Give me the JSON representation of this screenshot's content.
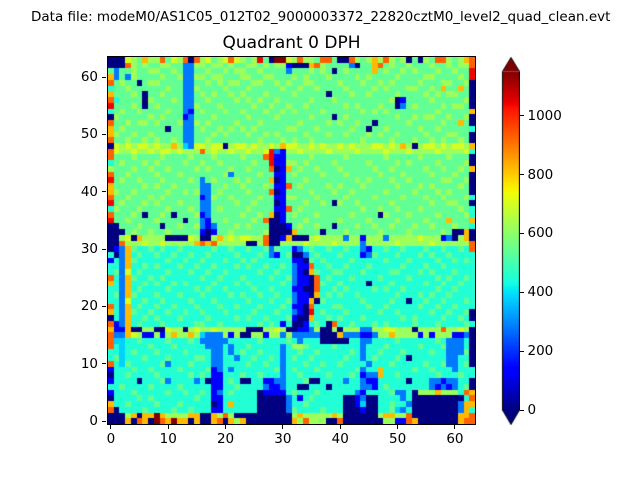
{
  "header": {
    "data_file_label": "Data file: modeM0/AS1C05_012T02_9000003372_22820cztM0_level2_quad_clean.evt"
  },
  "chart_data": {
    "type": "heatmap",
    "title": "Quadrant 0 DPH",
    "xlabel": "",
    "ylabel": "",
    "x_ticks": [
      0,
      10,
      20,
      30,
      40,
      50,
      60
    ],
    "y_ticks": [
      0,
      10,
      20,
      30,
      40,
      50,
      60
    ],
    "x_range": [
      -0.5,
      63.5
    ],
    "y_range": [
      -0.5,
      63.5
    ],
    "grid_size": [
      64,
      64
    ],
    "colormap": "jet",
    "vmin": 0,
    "vmax": 1150,
    "origin": "lower",
    "colorbar": {
      "ticks": [
        0,
        200,
        400,
        600,
        800,
        1000
      ],
      "extend": "both",
      "under_color": "#000080",
      "over_color": "#800000"
    },
    "value_key": {
      "0": -20,
      "1": 140,
      "2": 280,
      "3": 380,
      "4": 450,
      "5": 540,
      "6": 620,
      "7": 700,
      "8": 820,
      "9": 930,
      "A": 1040,
      "B": 1200
    },
    "row_order": "top_to_bottom_y63_to_y0",
    "rows": [
      "0007658669576909675679765 6A50BB769665995009656869656050659965689",
      "0009656556655226656656556656566100089655552055895655655565565669",
      "5255655665565225565565665565555255565650565555856556565556556 55A",
      "825265555655622665665556655665556565556555565655556555566555565A",
      "9565505665555225565656655665565655665555655565565655556555665560",
      "4556555555655226555565556555556556556555565555656555665565855850",
      "8555650556555225656556565556555565555505556556555565555656566550",
      "9455550655565225565555656565565555565556555555555601555565555560",
      "A555650565555226555655555655655655655555565655565502565555656650",
      "4565565555655215655565565556556565555655555565656555555556555558",
      "0655555656555125556555556555565555565550565555555565565665565560",
      "9556566565556226565555655565555556555565655655055555655555655850",
      "8565555555055225655656565655555665556555556550556555556556555554",
      "8655655655555225556565556556565555655565565556565565555655566550",
      "9556556565565225565555555565556565565555555565555655565565655650",
      "0767677676686327767706776766768776676766767666776768606776767768",
      "97667667677676669676676676 67A21667666676666766667666766667666674",
      "95556555565555655565555655 59A1155556555556555555655555655556 5550",
      "456555656555565565565555565 5A11665655556555556555565655556555560",
      "6555655655655556565556556555901856556555655555655655555655655658",
      "9556555565556555555562555565511565555655565555565556555565556550",
      "A565565556555565256555656555801555655555555656555655655555665560",
      "8555556565565555225565565556511956555565655565555565556565555650",
      "8655655555655656225655556555901555565556556555556555565556565550",
      "9556555656555555126556555565511665556555565555655556555655655564",
      "A565556565556555225555655655501555655650655655555655555565566550",
      "4655565555655565225655556555511956555555555565565565556555555654",
      "9555650556505556125555565565801565556555556555506555655556555564",
      "A556555565555055215565555659001555655555655556555565555655585558",
      "0055565550556556212555656555000156556550555655655655565565556554",
      "0005655655655555101556555556000085555055565555565555655555650080",
      "0067086666000076006867677669001800067666626616662666667666120680",
      "0096667667666668989666660069006666766667666626666676666676666669",
      "0128544545445444445445445445254412454454454421445445444544544549",
      "4028454454454454454444544454214500245444544412544454445454454444",
      "1428544444544544544454454544444411054544445444445444544445445454",
      "4428445454445445445444545445445421194454454445444445444544544444",
      "4527454444544454454454444454454421085445544454444554445454445444",
      "9428544545444444544544454444544521109454445444454444544445454454",
      "8428445454454544445444545444445421109544544440444544444544544544",
      "4428454444544445454454444544544411009445454444545445444445445444",
      "4528544454445444544445454454454421108454544544444454445454454444",
      "4427445445444454445444445444544521180544444454444544044544544454",
      "9428454454454445444544544454445411094445544445445444445445445444",
      "84285445445445445444544445444544210A4544454444454454444454454450",
      "0428445454445444454444545445444510084454544454444445454444544540",
      "9128454445444445544544444454541400145409445444545444454445444454",
      "8118006600766067667666660006676001126006066622667766606666966760",
      "9228761161686686322261600661662622222000822211266866661616661120",
      "9334454444544454222224444454444542444000004422444454444445422240",
      "9434444544454444422242445444442466544445444424445444445444522240",
      "4434544454444544442242454454442445445444445424454445444454422250",
      "4534445444544445542244244544542454454444454424544454044444422440",
      "9435444445244454442244445445442444544544544442444544444544522450",
      "1444544544445444451242444444452454445444444524484444454454442444",
      "0445444454444454541144454454442445444454445412284454444445444544",
      "1444404445244442401145400441122444500444424421144444044422122440",
      "4454444544445444441144544442112440044404444422145444444421212450",
      "1444544444544544541245444401111454445444444214444522406668666498",
      "0444454544444445441144444400000241454444400120044442400000000049",
      "8445444454445444440148444400000244544444400130044544200000000288",
      "9044445444454454441144444400000254444544400010044532400000000284",
      "00068088B866668800869600000000006866666860000006886690000 0000889",
      "00080980B98B880800890868000000008696660090000000661198000 0000899"
    ]
  }
}
